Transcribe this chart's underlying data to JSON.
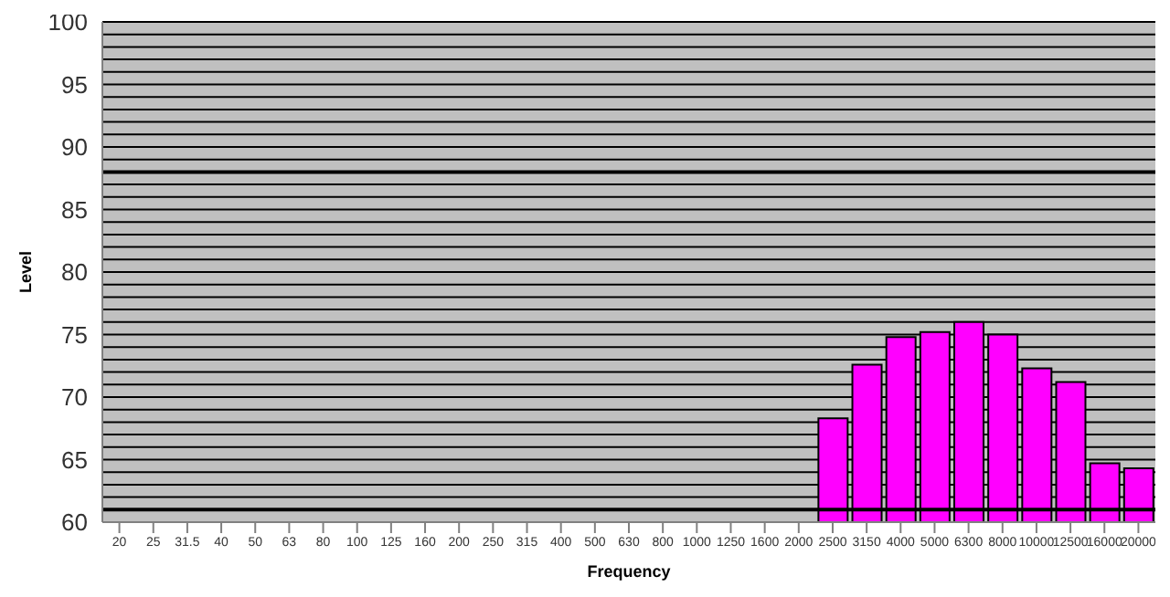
{
  "chart_data": {
    "type": "bar",
    "xlabel": "Frequency",
    "ylabel": "Level",
    "categories": [
      "20",
      "25",
      "31.5",
      "40",
      "50",
      "63",
      "80",
      "100",
      "125",
      "160",
      "200",
      "250",
      "315",
      "400",
      "500",
      "630",
      "800",
      "1000",
      "1250",
      "1600",
      "2000",
      "2500",
      "3150",
      "4000",
      "5000",
      "6300",
      "8000",
      "10000",
      "12500",
      "16000",
      "20000"
    ],
    "values": [
      null,
      null,
      null,
      null,
      null,
      null,
      null,
      null,
      null,
      null,
      null,
      null,
      null,
      null,
      null,
      null,
      null,
      null,
      null,
      null,
      null,
      68.3,
      72.6,
      74.8,
      75.2,
      76.0,
      75.0,
      72.3,
      71.2,
      64.7,
      64.3
    ],
    "color": "#ff00ff",
    "ylim": [
      60,
      100
    ],
    "yticks": [
      60,
      {
        "value": 62,
        "label": null
      },
      {
        "value": 63,
        "label": null
      },
      {
        "value": 64,
        "label": null
      },
      65,
      {
        "value": 66,
        "label": null
      },
      {
        "value": 67,
        "label": null
      },
      {
        "value": 68,
        "label": null
      },
      {
        "value": 69,
        "label": null
      },
      70,
      {
        "value": 71,
        "label": null
      },
      {
        "value": 72,
        "label": null
      },
      {
        "value": 73,
        "label": null
      },
      {
        "value": 74,
        "label": null
      },
      75,
      {
        "value": 76,
        "label": null
      },
      {
        "value": 77,
        "label": null
      },
      {
        "value": 78,
        "label": null
      },
      {
        "value": 79,
        "label": null
      },
      80,
      {
        "value": 81,
        "label": null
      },
      {
        "value": 82,
        "label": null
      },
      {
        "value": 83,
        "label": null
      },
      {
        "value": 84,
        "label": null
      },
      85,
      {
        "value": 86,
        "label": null
      },
      {
        "value": 87,
        "label": null
      },
      {
        "value": 89,
        "label": null
      },
      90,
      {
        "value": 91,
        "label": null
      },
      {
        "value": 92,
        "label": null
      },
      {
        "value": 93,
        "label": null
      },
      {
        "value": 94,
        "label": null
      },
      95,
      {
        "value": 96,
        "label": null
      },
      {
        "value": 97,
        "label": null
      },
      {
        "value": 98,
        "label": null
      },
      {
        "value": 99,
        "label": null
      },
      100
    ],
    "grid": "y",
    "ref_lines": [
      {
        "axis": "y",
        "value": 88,
        "color": "#000000"
      },
      {
        "axis": "y",
        "value": 61,
        "color": "#000000"
      }
    ]
  }
}
